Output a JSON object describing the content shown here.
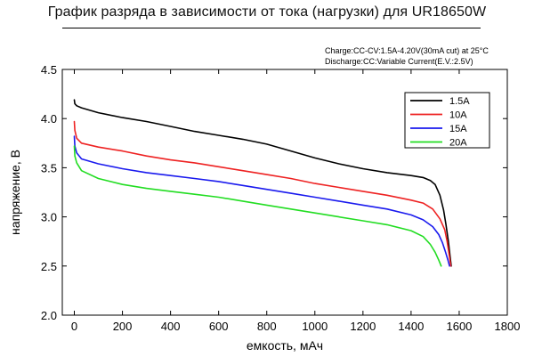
{
  "title": "График разряда в зависимости от тока (нагрузки) для UR18650W",
  "conditions": {
    "charge": "Charge:CC-CV:1.5A-4.20V(30mA cut) at 25°C",
    "discharge": "Discharge:CC:Variable Current(E.V.:2.5V)"
  },
  "chart_data": {
    "type": "line",
    "title": "График разряда в зависимости от тока (нагрузки) для UR18650W",
    "xlabel": "емкость, мАч",
    "ylabel": "напряжение, В",
    "xlim": [
      -50,
      1800
    ],
    "ylim": [
      2.0,
      4.5
    ],
    "xticks": [
      0,
      200,
      400,
      600,
      800,
      1000,
      1200,
      1400,
      1600,
      1800
    ],
    "yticks": [
      2.0,
      2.5,
      3.0,
      3.5,
      4.0,
      4.5
    ],
    "xtick_labels": [
      "0",
      "200",
      "400",
      "600",
      "800",
      "1000",
      "1200",
      "1400",
      "1600",
      "1800"
    ],
    "ytick_labels": [
      "2.0",
      "2.5",
      "3.0",
      "3.5",
      "4.0",
      "4.5"
    ],
    "grid": false,
    "legend_position": "top-right",
    "series": [
      {
        "name": "1.5A",
        "color": "#000000",
        "x": [
          0,
          2,
          10,
          30,
          100,
          200,
          300,
          400,
          500,
          600,
          700,
          800,
          900,
          1000,
          1100,
          1200,
          1300,
          1400,
          1450,
          1480,
          1500,
          1520,
          1535,
          1545,
          1555,
          1562,
          1567
        ],
        "y": [
          4.19,
          4.15,
          4.13,
          4.11,
          4.06,
          4.01,
          3.97,
          3.92,
          3.87,
          3.83,
          3.79,
          3.74,
          3.67,
          3.6,
          3.54,
          3.49,
          3.45,
          3.42,
          3.4,
          3.37,
          3.33,
          3.22,
          3.07,
          2.92,
          2.75,
          2.6,
          2.5
        ]
      },
      {
        "name": "10A",
        "color": "#ee2222",
        "x": [
          0,
          2,
          10,
          30,
          100,
          200,
          300,
          400,
          500,
          600,
          700,
          800,
          900,
          1000,
          1100,
          1200,
          1300,
          1400,
          1450,
          1490,
          1520,
          1540,
          1550,
          1558,
          1565
        ],
        "y": [
          3.97,
          3.88,
          3.8,
          3.75,
          3.71,
          3.67,
          3.62,
          3.58,
          3.55,
          3.51,
          3.47,
          3.43,
          3.39,
          3.34,
          3.3,
          3.26,
          3.22,
          3.17,
          3.14,
          3.08,
          2.98,
          2.87,
          2.75,
          2.62,
          2.5
        ]
      },
      {
        "name": "15A",
        "color": "#1a1aee",
        "x": [
          0,
          2,
          10,
          30,
          100,
          200,
          300,
          400,
          500,
          600,
          700,
          800,
          900,
          1000,
          1100,
          1200,
          1300,
          1400,
          1450,
          1490,
          1515,
          1530,
          1542,
          1552,
          1560
        ],
        "y": [
          3.82,
          3.72,
          3.65,
          3.59,
          3.54,
          3.49,
          3.45,
          3.42,
          3.39,
          3.36,
          3.32,
          3.28,
          3.24,
          3.2,
          3.16,
          3.12,
          3.08,
          3.02,
          2.97,
          2.9,
          2.82,
          2.74,
          2.65,
          2.57,
          2.5
        ]
      },
      {
        "name": "20A",
        "color": "#22dd22",
        "x": [
          0,
          2,
          10,
          30,
          100,
          200,
          300,
          400,
          500,
          600,
          700,
          800,
          900,
          1000,
          1100,
          1200,
          1300,
          1400,
          1450,
          1480,
          1500,
          1515,
          1525
        ],
        "y": [
          3.72,
          3.62,
          3.55,
          3.47,
          3.39,
          3.33,
          3.29,
          3.26,
          3.23,
          3.2,
          3.16,
          3.12,
          3.08,
          3.04,
          3.0,
          2.96,
          2.92,
          2.86,
          2.8,
          2.72,
          2.64,
          2.56,
          2.5
        ]
      }
    ]
  }
}
